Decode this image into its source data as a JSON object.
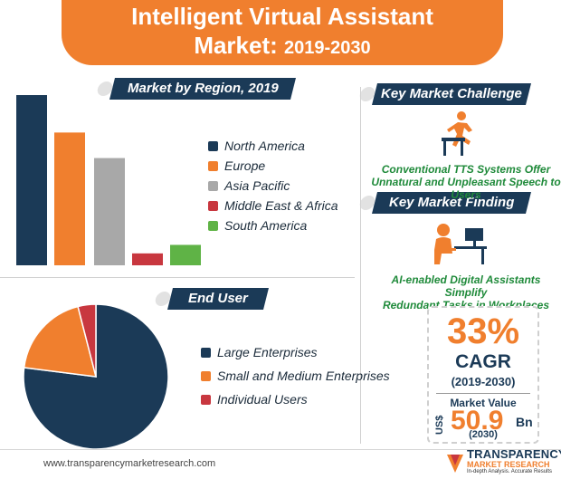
{
  "header": {
    "title_line1": "Intelligent Virtual Assistant",
    "title_line2": "Market:",
    "title_years": "2019-2030"
  },
  "sections": {
    "region": "Market by Region, 2019",
    "challenge": "Key Market Challenge",
    "finding": "Key Market Finding",
    "end_user": "End User"
  },
  "challenge_text": [
    "Conventional TTS Systems Offer",
    "Unnatural and Unpleasant Speech to Users"
  ],
  "finding_text": [
    "AI-enabled Digital Assistants Simplify",
    "Redundant Tasks in Workplaces"
  ],
  "stats": {
    "cagr_value": "33%",
    "cagr_label": "CAGR",
    "cagr_period": "(2019-2030)",
    "market_value_label": "Market Value",
    "currency": "US$",
    "market_value": "50.9",
    "unit": "Bn",
    "market_value_year": "(2030)"
  },
  "footer": {
    "url": "www.transparencymarketresearch.com",
    "brand_line1": "TRANSPARENCY",
    "brand_line2": "MARKET RESEARCH",
    "brand_line3": "In-depth Analysis. Accurate Results"
  },
  "colors": {
    "north_america": "#1b3a57",
    "europe": "#f07f2e",
    "asia_pacific": "#a8a8a8",
    "mea": "#c8373f",
    "south_america": "#5fb346"
  },
  "chart_data": [
    {
      "type": "bar",
      "title": "Market by Region, 2019",
      "categories": [
        "North America",
        "Europe",
        "Asia Pacific",
        "Middle East & Africa",
        "South America"
      ],
      "values": [
        100,
        78,
        63,
        7,
        12
      ],
      "colors": [
        "#1b3a57",
        "#f07f2e",
        "#a8a8a8",
        "#c8373f",
        "#5fb346"
      ],
      "ylim": [
        0,
        100
      ],
      "grid": false,
      "legend": "right"
    },
    {
      "type": "pie",
      "title": "End User",
      "categories": [
        "Large Enterprises",
        "Small and Medium Enterprises",
        "Individual Users"
      ],
      "values": [
        77,
        19,
        4
      ],
      "colors": [
        "#1b3a57",
        "#f07f2e",
        "#c8373f"
      ],
      "legend": "right"
    }
  ]
}
